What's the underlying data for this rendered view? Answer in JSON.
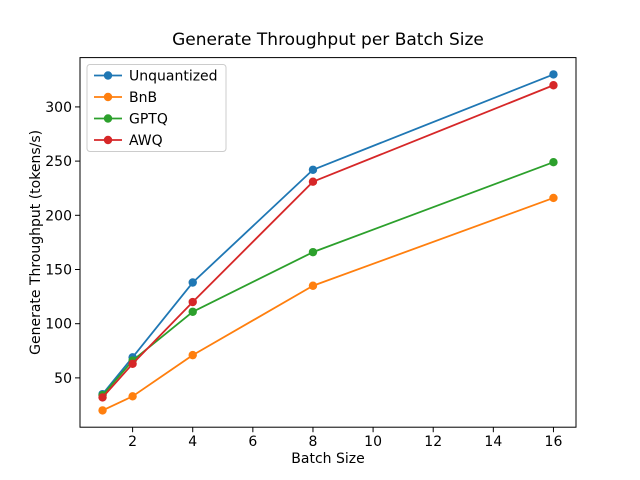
{
  "chart_data": {
    "type": "line",
    "title": "Generate Throughput per Batch Size",
    "xlabel": "Batch Size",
    "ylabel": "Generate Throughput (tokens/s)",
    "x": [
      1,
      2,
      4,
      8,
      16
    ],
    "series": [
      {
        "name": "Unquantized",
        "color": "#1f77b4",
        "values": [
          35,
          69,
          138,
          242,
          330
        ]
      },
      {
        "name": "BnB",
        "color": "#ff7f0e",
        "values": [
          20,
          33,
          71,
          135,
          216
        ]
      },
      {
        "name": "GPTQ",
        "color": "#2ca02c",
        "values": [
          34,
          66,
          111,
          166,
          249
        ]
      },
      {
        "name": "AWQ",
        "color": "#d62728",
        "values": [
          32,
          63,
          120,
          231,
          320
        ]
      }
    ],
    "xticks": [
      2,
      4,
      6,
      8,
      10,
      12,
      14,
      16
    ],
    "yticks": [
      50,
      100,
      150,
      200,
      250,
      300
    ],
    "xlim": [
      0.25,
      16.75
    ],
    "ylim": [
      4.5,
      345.5
    ],
    "grid": false,
    "marker": "o",
    "legend": {
      "location": "upper left"
    },
    "colors": {
      "background": "#ffffff",
      "axis": "#000000",
      "legend_border": "#cccccc"
    }
  }
}
